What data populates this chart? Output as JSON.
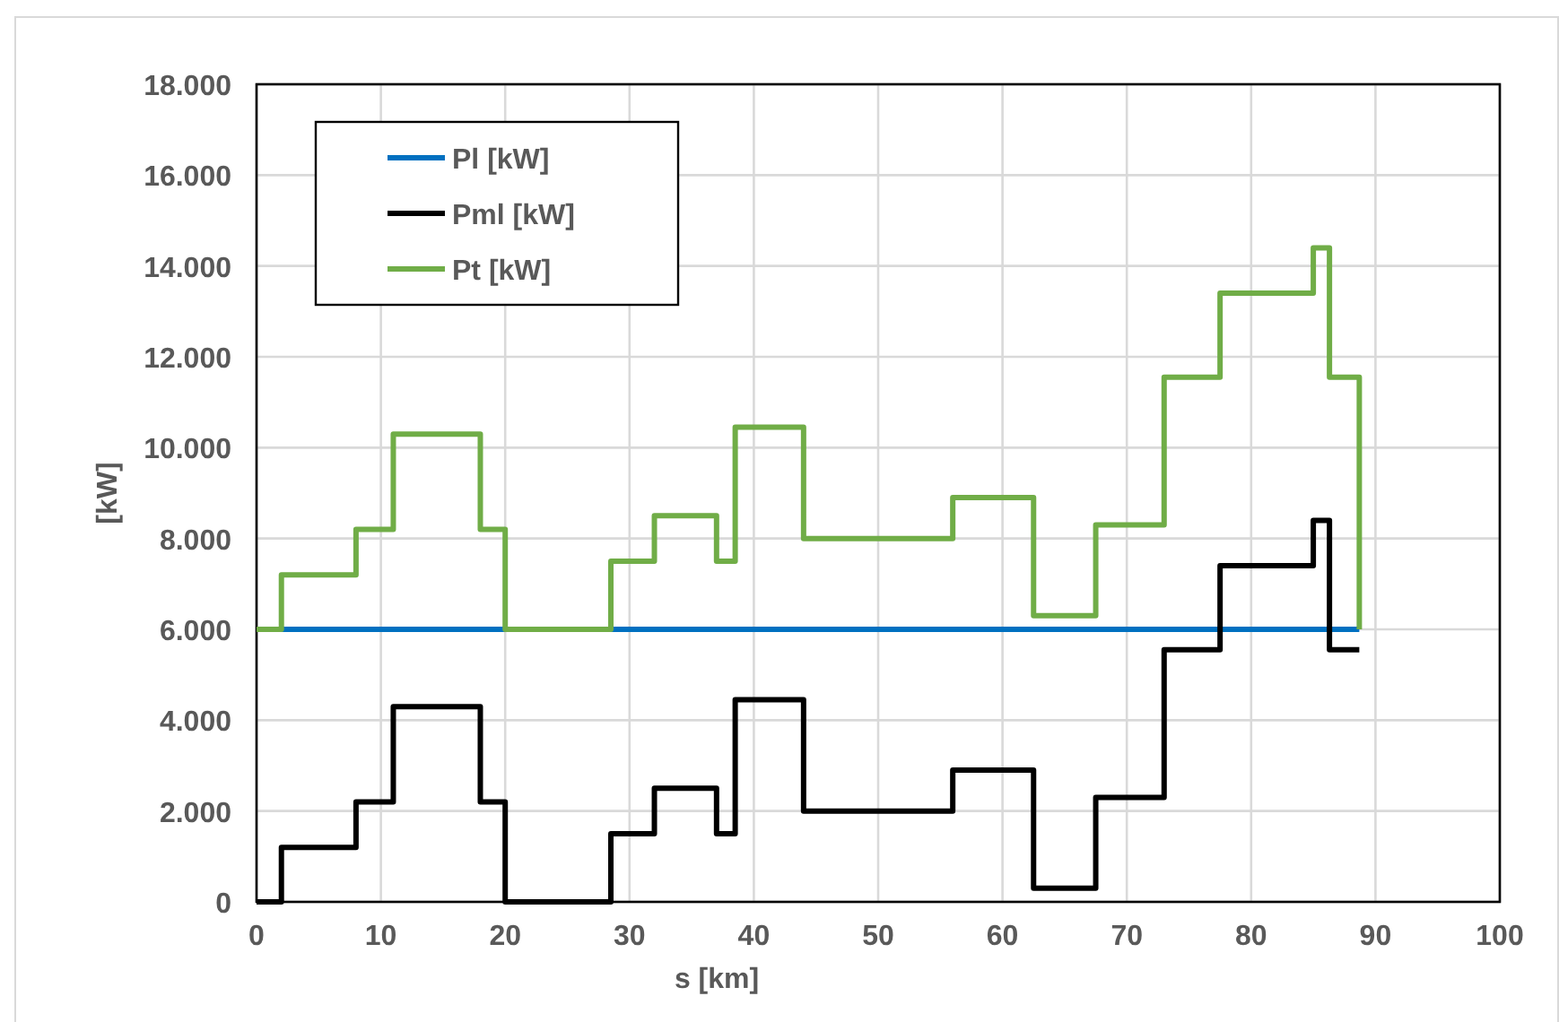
{
  "chart_data": {
    "type": "step",
    "xlabel": "s [km]",
    "ylabel": "[kW]",
    "xlim": [
      0,
      100
    ],
    "xticks": [
      0,
      10,
      20,
      30,
      40,
      50,
      60,
      70,
      80,
      90,
      100
    ],
    "ylim": [
      0,
      18000
    ],
    "yticks": [
      0,
      {
        "value": 2000,
        "label": "2.000"
      },
      {
        "value": 4000,
        "label": "4.000"
      },
      {
        "value": 6000,
        "label": "6.000"
      },
      {
        "value": 8000,
        "label": "8.000"
      },
      {
        "value": 10000,
        "label": "10.000"
      },
      {
        "value": 12000,
        "label": "12.000"
      },
      {
        "value": 14000,
        "label": "14.000"
      },
      {
        "value": 16000,
        "label": "16.000"
      },
      {
        "value": 18000,
        "label": "18.000"
      }
    ],
    "grid": true,
    "legend": "top left",
    "marker": "none",
    "line_style": "solid",
    "series": [
      {
        "name": "Pl [kW]",
        "color": "#0070c0",
        "x": [
          0,
          88.7
        ],
        "values": [
          6000,
          6000
        ]
      },
      {
        "name": "Pml [kW]",
        "color": "#000000",
        "x": [
          0,
          2,
          8,
          11,
          18,
          20,
          28.5,
          32,
          37,
          38.5,
          44,
          56,
          62.5,
          67.5,
          73,
          77.5,
          85,
          86.3,
          88.7
        ],
        "values": [
          0,
          1200,
          2200,
          4300,
          2200,
          0,
          1500,
          2500,
          1500,
          4450,
          2000,
          2900,
          300,
          2300,
          5550,
          7400,
          8400,
          5550,
          5550
        ]
      },
      {
        "name": "Pt [kW]",
        "color": "#70ad47",
        "x": [
          0,
          2,
          8,
          11,
          18,
          20,
          28.5,
          32,
          37,
          38.5,
          44,
          56,
          62.5,
          67.5,
          73,
          77.5,
          85,
          86.3,
          88.7
        ],
        "values": [
          6000,
          7200,
          8200,
          10300,
          8200,
          6000,
          7500,
          8500,
          7500,
          10450,
          8000,
          8900,
          6300,
          8300,
          11550,
          13400,
          14400,
          11550,
          6000
        ]
      }
    ]
  }
}
